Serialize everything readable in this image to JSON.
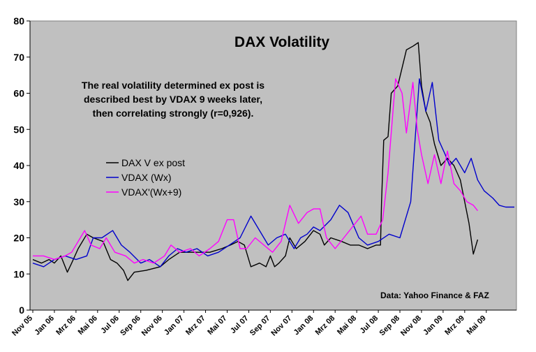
{
  "chart_data": {
    "type": "line",
    "title": "DAX Volatility",
    "annotation": [
      "The real volatility determined ex post is",
      "described best by VDAX 9 weeks later,",
      "then correlating strongly (r=0,926)."
    ],
    "source": "Data: Yahoo Finance &  FAZ",
    "xlabel": "",
    "ylabel": "",
    "ylim": [
      0,
      80
    ],
    "yticks": [
      0,
      10,
      20,
      30,
      40,
      50,
      60,
      70,
      80
    ],
    "x_tick_labels": [
      "Nov 05",
      "Jan 06",
      "Mrz 06",
      "Mai 06",
      "Jul 06",
      "Sep 06",
      "Nov 06",
      "Jan 07",
      "Mrz 07",
      "Mai 07",
      "Jul 07",
      "Sep 07",
      "Nov 07",
      "Jan 08",
      "Mrz 08",
      "Mai 08",
      "Jul 08",
      "Sep 08",
      "Nov 08",
      "Jan 09",
      "Mrz 09",
      "Mai 09"
    ],
    "x_tick_months": [
      0,
      2,
      4,
      6,
      8,
      10,
      12,
      14,
      16,
      18,
      20,
      22,
      24,
      26,
      28,
      30,
      32,
      34,
      36,
      38,
      40,
      42
    ],
    "xlim_months": [
      0,
      44.6
    ],
    "grid": false,
    "legend_position": "middle-left",
    "plot_background": "#c0c0c0",
    "series": [
      {
        "name": "DAX V ex post",
        "color": "#000000",
        "points": [
          [
            0,
            14
          ],
          [
            0.8,
            13
          ],
          [
            1.5,
            14
          ],
          [
            2,
            13
          ],
          [
            2.6,
            15
          ],
          [
            3.2,
            10.5
          ],
          [
            3.6,
            13
          ],
          [
            4.2,
            17
          ],
          [
            5,
            21
          ],
          [
            5.6,
            20
          ],
          [
            6.5,
            19
          ],
          [
            7.2,
            14
          ],
          [
            7.8,
            13
          ],
          [
            8.4,
            11
          ],
          [
            8.8,
            8.2
          ],
          [
            9.4,
            10.5
          ],
          [
            10.5,
            11
          ],
          [
            11.8,
            12
          ],
          [
            12.6,
            14
          ],
          [
            13.6,
            16
          ],
          [
            14.4,
            16
          ],
          [
            15.4,
            16
          ],
          [
            16.4,
            16
          ],
          [
            17.5,
            17
          ],
          [
            18.3,
            18
          ],
          [
            19,
            19
          ],
          [
            19.6,
            18
          ],
          [
            20.2,
            12
          ],
          [
            21,
            13
          ],
          [
            21.6,
            12
          ],
          [
            22,
            15
          ],
          [
            22.4,
            12
          ],
          [
            22.8,
            13
          ],
          [
            23.4,
            15
          ],
          [
            23.8,
            20
          ],
          [
            24.4,
            17
          ],
          [
            25.2,
            19
          ],
          [
            26,
            22
          ],
          [
            26.6,
            21
          ],
          [
            27,
            18
          ],
          [
            27.6,
            20
          ],
          [
            28.6,
            19
          ],
          [
            29.4,
            18
          ],
          [
            30.2,
            18
          ],
          [
            31,
            17
          ],
          [
            31.8,
            18
          ],
          [
            32.2,
            18
          ],
          [
            32.3,
            30
          ],
          [
            32.5,
            47
          ],
          [
            32.9,
            48
          ],
          [
            33.2,
            60
          ],
          [
            33.8,
            62
          ],
          [
            34.6,
            72
          ],
          [
            35.2,
            73
          ],
          [
            35.7,
            74
          ],
          [
            36,
            62
          ],
          [
            36.4,
            55
          ],
          [
            36.8,
            52
          ],
          [
            37.2,
            46
          ],
          [
            37.8,
            40
          ],
          [
            38.4,
            42
          ],
          [
            39,
            40
          ],
          [
            39.6,
            36
          ],
          [
            40,
            30
          ],
          [
            40.4,
            24
          ],
          [
            40.8,
            15.5
          ],
          [
            41.2,
            19.5
          ]
        ]
      },
      {
        "name": "VDAX (Wx)",
        "color": "#0000cc",
        "points": [
          [
            0,
            13
          ],
          [
            1,
            12
          ],
          [
            2,
            14
          ],
          [
            3,
            15
          ],
          [
            4,
            14
          ],
          [
            5,
            15
          ],
          [
            5.6,
            20
          ],
          [
            6.4,
            20
          ],
          [
            7.4,
            22
          ],
          [
            8.2,
            18
          ],
          [
            9,
            16
          ],
          [
            10,
            13
          ],
          [
            10.8,
            14
          ],
          [
            11.8,
            12
          ],
          [
            12.6,
            15
          ],
          [
            13.4,
            17
          ],
          [
            14.2,
            16
          ],
          [
            15.2,
            17
          ],
          [
            16.2,
            15
          ],
          [
            17.2,
            16
          ],
          [
            18.2,
            18
          ],
          [
            19.2,
            20
          ],
          [
            20.2,
            26
          ],
          [
            21,
            22
          ],
          [
            21.8,
            18
          ],
          [
            22.6,
            20
          ],
          [
            23.4,
            21
          ],
          [
            24.2,
            17
          ],
          [
            24.8,
            20
          ],
          [
            25.4,
            21
          ],
          [
            26,
            23
          ],
          [
            26.6,
            22
          ],
          [
            27.6,
            25
          ],
          [
            28.4,
            29
          ],
          [
            29.2,
            27
          ],
          [
            30.2,
            20
          ],
          [
            31,
            18
          ],
          [
            32,
            19
          ],
          [
            33,
            21
          ],
          [
            34,
            20
          ],
          [
            35,
            30
          ],
          [
            35.8,
            64
          ],
          [
            36.4,
            55
          ],
          [
            37,
            63
          ],
          [
            37.6,
            47
          ],
          [
            38.2,
            43
          ],
          [
            38.6,
            40
          ],
          [
            39.2,
            42
          ],
          [
            40,
            38
          ],
          [
            40.6,
            42
          ],
          [
            41.2,
            36
          ],
          [
            41.8,
            33
          ],
          [
            42.6,
            31
          ],
          [
            43.2,
            29
          ],
          [
            43.8,
            28.5
          ],
          [
            44.6,
            28.5
          ]
        ]
      },
      {
        "name": "VDAX'(Wx+9)",
        "color": "#ff00ff",
        "points": [
          [
            0,
            15
          ],
          [
            1,
            15
          ],
          [
            2,
            14
          ],
          [
            3,
            15
          ],
          [
            3.6,
            16
          ],
          [
            4.4,
            20
          ],
          [
            4.8,
            22
          ],
          [
            5.4,
            18
          ],
          [
            6.2,
            17
          ],
          [
            6.8,
            20
          ],
          [
            7.6,
            16
          ],
          [
            8.6,
            15
          ],
          [
            9.4,
            13
          ],
          [
            10.2,
            14
          ],
          [
            11.2,
            13
          ],
          [
            12.2,
            15
          ],
          [
            12.8,
            18
          ],
          [
            13.6,
            16
          ],
          [
            14.6,
            17
          ],
          [
            15.4,
            15
          ],
          [
            16.4,
            17
          ],
          [
            17.2,
            19
          ],
          [
            18,
            25
          ],
          [
            18.6,
            25
          ],
          [
            19.2,
            17
          ],
          [
            19.8,
            17
          ],
          [
            20.6,
            20
          ],
          [
            21.4,
            18
          ],
          [
            22.2,
            16
          ],
          [
            23,
            19
          ],
          [
            23.8,
            29
          ],
          [
            24.6,
            24
          ],
          [
            25.4,
            27
          ],
          [
            26,
            28
          ],
          [
            26.6,
            28
          ],
          [
            27.2,
            20
          ],
          [
            28,
            17
          ],
          [
            28.8,
            20
          ],
          [
            29.6,
            23
          ],
          [
            30.4,
            26
          ],
          [
            31,
            21
          ],
          [
            31.8,
            21
          ],
          [
            32.4,
            25
          ],
          [
            32.9,
            38
          ],
          [
            33.6,
            64
          ],
          [
            34.2,
            60
          ],
          [
            34.6,
            49
          ],
          [
            35.2,
            63
          ],
          [
            35.6,
            50
          ],
          [
            36,
            43
          ],
          [
            36.6,
            35
          ],
          [
            37.2,
            43
          ],
          [
            37.8,
            35
          ],
          [
            38.4,
            44
          ],
          [
            39,
            35
          ],
          [
            39.6,
            33
          ],
          [
            40.2,
            30
          ],
          [
            40.8,
            29
          ],
          [
            41.2,
            27.5
          ]
        ]
      }
    ]
  }
}
